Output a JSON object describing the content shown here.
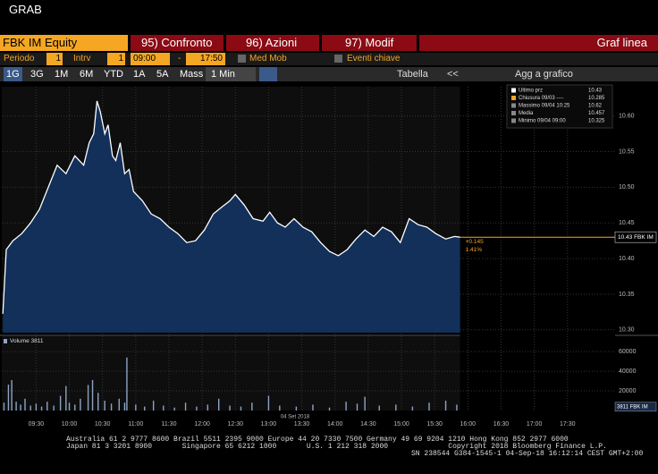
{
  "ui": {
    "window_title": "GRAB",
    "security": "FBK IM Equity",
    "menu": [
      "95) Confronto",
      "96) Azioni",
      "97) Modif"
    ],
    "chart_style": "Graf linea",
    "period_label": "Periodo",
    "period_value": "1",
    "interval_label": "Intrv",
    "interval_value": "1",
    "time_from": "09:00",
    "time_sep": "-",
    "time_to": "17:50",
    "moving_avg": "Med Mob",
    "key_events": "Eventi chiave",
    "ranges": [
      "1G",
      "3G",
      "1M",
      "6M",
      "YTD",
      "1A",
      "5A",
      "Mass"
    ],
    "interval_select": "1 Min",
    "table": "Tabella",
    "nav": "<<",
    "add_to_chart": "Agg a grafico",
    "footer": [
      "Australia 61 2 9777 8600 Brazil 5511 2395 9000 Europe 44 20 7330 7500 Germany 49 69 9204 1210 Hong Kong 852 2977 6000",
      "Japan 81 3 3201 8900       Singapore 65 6212 1000       U.S. 1 212 318 2000              Copyright 2018 Bloomberg Finance L.P.",
      "SN 238544 G384-1545-1 04-Sep-18 16:12:14 CEST GMT+2:00"
    ]
  },
  "chart_data": [
    {
      "type": "line",
      "color": "#ffffff",
      "fill": "#12305a",
      "legend": [
        [
          "Ultimo prz",
          "10.43"
        ],
        [
          "Chiusura 09/03 ----",
          "10.285"
        ],
        [
          "Massimo 09/04 10:25",
          "10.62"
        ],
        [
          "Media",
          "10.457"
        ],
        [
          "Minimo 09/04 09:00",
          "10.325"
        ]
      ],
      "x": [
        540,
        543,
        549,
        557,
        565,
        573,
        581,
        589,
        597,
        605,
        613,
        618,
        622,
        625,
        628,
        632,
        635,
        639,
        642,
        646,
        650,
        654,
        658,
        666,
        674,
        682,
        690,
        698,
        706,
        714,
        722,
        730,
        738,
        745,
        750,
        758,
        766,
        775,
        781,
        788,
        795,
        803,
        811,
        819,
        827,
        835,
        843,
        851,
        859,
        867,
        875,
        883,
        891,
        899,
        907,
        915,
        923,
        931,
        940,
        948,
        953
      ],
      "values": [
        10.3225,
        10.4125,
        10.425,
        10.435,
        10.45,
        10.469,
        10.5,
        10.531,
        10.519,
        10.544,
        10.531,
        10.5625,
        10.575,
        10.621,
        10.606,
        10.575,
        10.5875,
        10.544,
        10.5375,
        10.5625,
        10.519,
        10.525,
        10.494,
        10.481,
        10.4625,
        10.456,
        10.444,
        10.435,
        10.4225,
        10.425,
        10.44,
        10.4625,
        10.4725,
        10.481,
        10.49,
        10.475,
        10.456,
        10.4525,
        10.465,
        10.45,
        10.444,
        10.456,
        10.444,
        10.4375,
        10.4225,
        10.41,
        10.404,
        10.4125,
        10.4275,
        10.44,
        10.431,
        10.444,
        10.4375,
        10.4225,
        10.456,
        10.4475,
        10.444,
        10.435,
        10.4275,
        10.431,
        10.43
      ],
      "xlim": [
        539,
        1093
      ],
      "ylim": [
        10.296,
        10.641
      ],
      "xticks": [
        {
          "value": 570,
          "label": "09:30"
        },
        {
          "value": 600,
          "label": "10:00"
        },
        {
          "value": 630,
          "label": "10:30"
        },
        {
          "value": 660,
          "label": "11:00"
        },
        {
          "value": 690,
          "label": "11:30"
        },
        {
          "value": 720,
          "label": "12:00"
        },
        {
          "value": 750,
          "label": "12:30"
        },
        {
          "value": 780,
          "label": "13:00"
        },
        {
          "value": 810,
          "label": "13:30"
        },
        {
          "value": 840,
          "label": "14:00"
        },
        {
          "value": 870,
          "label": "14:30"
        },
        {
          "value": 900,
          "label": "15:00"
        },
        {
          "value": 930,
          "label": "15:30"
        },
        {
          "value": 960,
          "label": "16:00"
        },
        {
          "value": 990,
          "label": "16:30"
        },
        {
          "value": 1020,
          "label": "17:00"
        },
        {
          "value": 1050,
          "label": "17:30"
        }
      ],
      "yticks": [
        {
          "value": 10.3,
          "label": "10.30"
        },
        10.35,
        {
          "value": 10.4,
          "label": "10.40"
        },
        10.45,
        {
          "value": 10.5,
          "label": "10.50"
        },
        10.55,
        {
          "value": 10.6,
          "label": "10.60"
        }
      ],
      "grid": true,
      "last_value": 10.43,
      "last_label": "10.43 FBK IM",
      "change": "+0.145",
      "change_pct": "1.41%",
      "date_label": "04 Set 2018"
    },
    {
      "type": "bar",
      "title": "Volume 3811",
      "color": "#8ea4c4",
      "x": [
        541,
        545,
        548,
        552,
        556,
        560,
        565,
        570,
        575,
        580,
        586,
        592,
        597,
        600,
        605,
        610,
        617,
        621,
        626,
        632,
        638,
        645,
        650,
        652,
        660,
        668,
        676,
        685,
        695,
        705,
        715,
        725,
        735,
        745,
        755,
        765,
        780,
        790,
        805,
        820,
        835,
        850,
        860,
        867,
        880,
        895,
        910,
        925,
        940,
        950
      ],
      "values": [
        8000,
        26400,
        31000,
        9000,
        6000,
        12000,
        5000,
        7000,
        4000,
        9000,
        5000,
        15000,
        25000,
        8000,
        6000,
        12000,
        26000,
        31000,
        18000,
        10000,
        7000,
        12000,
        8000,
        54000,
        6000,
        4000,
        10000,
        5000,
        3000,
        8000,
        4000,
        6000,
        12000,
        5000,
        4000,
        8000,
        15000,
        5000,
        4000,
        6000,
        3000,
        9000,
        7000,
        14000,
        5000,
        6000,
        4000,
        8000,
        10000,
        6000
      ],
      "ylim": [
        0,
        72000
      ],
      "yticks": [
        20000,
        40000,
        60000
      ],
      "grid": true,
      "last_value": 3811,
      "last_label": "3811 FBK IM"
    }
  ]
}
